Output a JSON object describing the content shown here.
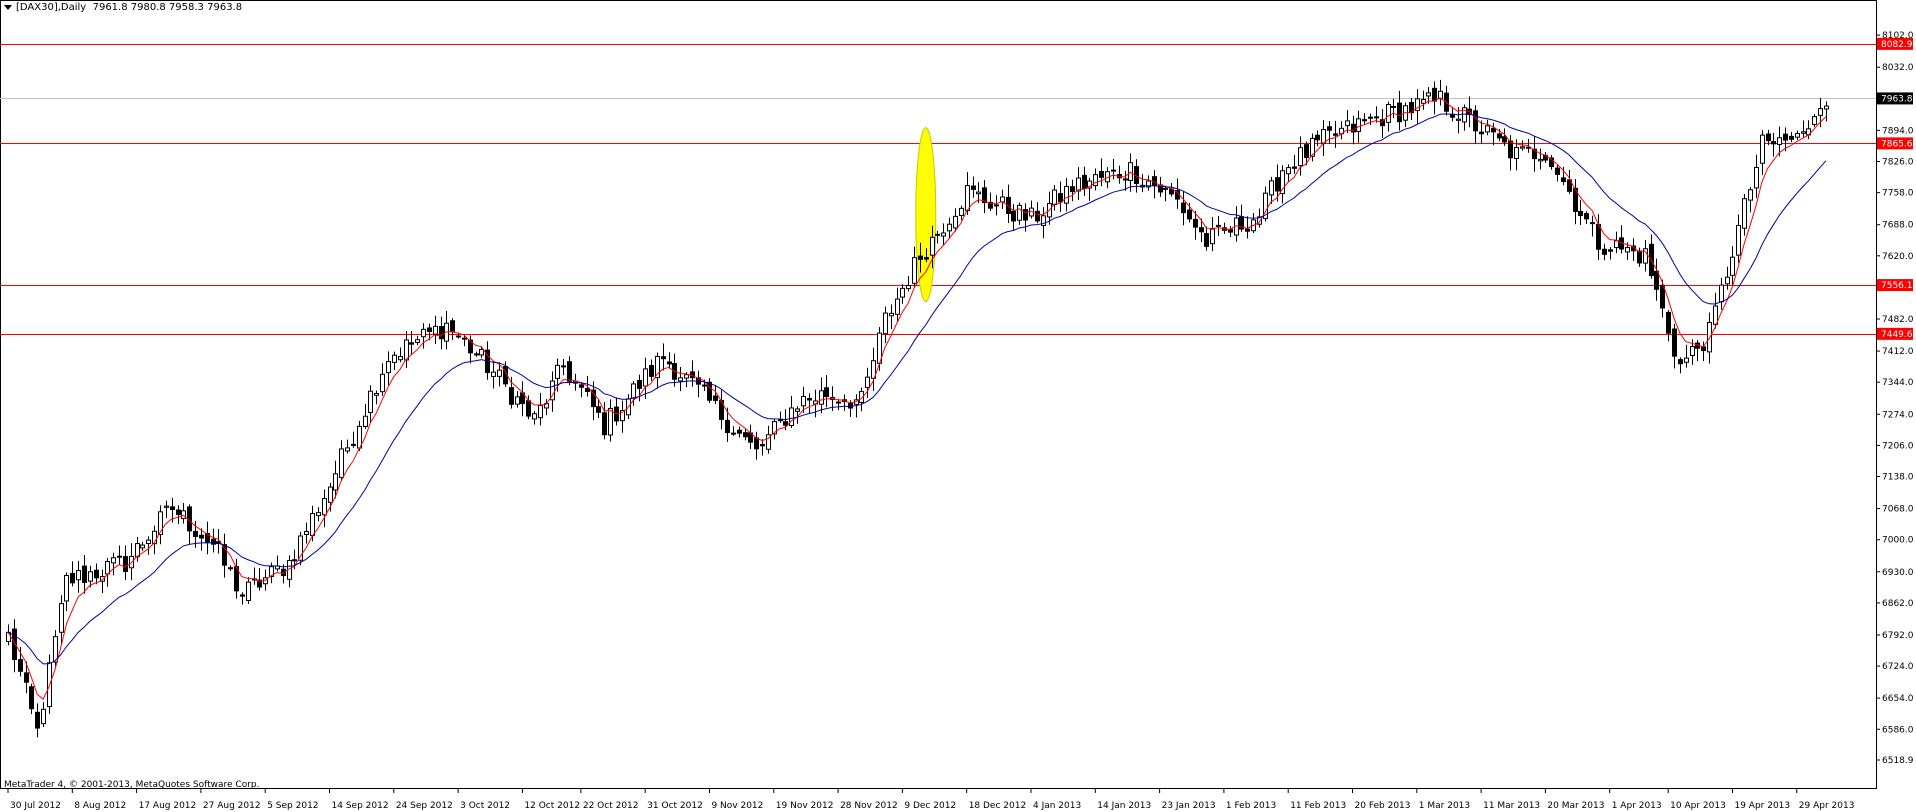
{
  "header": {
    "symbol": "[DAX30],Daily",
    "ohlc": "7961.8 7980.8 7958.3 7963.8"
  },
  "footer": {
    "copyright": "MetaTrader 4, © 2001-2013, MetaQuotes Software Corp."
  },
  "chart_data": {
    "type": "candlestick",
    "ylim": [
      6518.9,
      8170.0
    ],
    "y_ticks": [
      "8102.0",
      "8032.0",
      "7963.8",
      "7894.0",
      "7826.0",
      "7758.0",
      "7688.0",
      "7620.0",
      "7556.1",
      "7482.0",
      "7412.0",
      "7344.0",
      "7274.0",
      "7206.0",
      "7138.0",
      "7068.0",
      "7000.0",
      "6930.0",
      "6862.0",
      "6792.0",
      "6724.0",
      "6654.0",
      "6586.0",
      "6518.9"
    ],
    "x_ticks": [
      "30 Jul 2012",
      "8 Aug 2012",
      "17 Aug 2012",
      "27 Aug 2012",
      "5 Sep 2012",
      "14 Sep 2012",
      "24 Sep 2012",
      "3 Oct 2012",
      "12 Oct 2012",
      "22 Oct 2012",
      "31 Oct 2012",
      "9 Nov 2012",
      "19 Nov 2012",
      "28 Nov 2012",
      "9 Dec 2012",
      "18 Dec 2012",
      "4 Jan 2013",
      "14 Jan 2013",
      "23 Jan 2013",
      "1 Feb 2013",
      "11 Feb 2013",
      "20 Feb 2013",
      "1 Mar 2013",
      "11 Mar 2013",
      "20 Mar 2013",
      "1 Apr 2013",
      "10 Apr 2013",
      "19 Apr 2013",
      "29 Apr 2013"
    ],
    "hlines": [
      {
        "value": 8082.9,
        "label": "8082.9",
        "color": "#ff0000"
      },
      {
        "value": 7865.6,
        "label": "7865.6",
        "color": "#ff0000"
      },
      {
        "value": 7556.1,
        "label": "7556.1",
        "color": "#ff0000"
      },
      {
        "value": 7449.6,
        "label": "7449.6",
        "color": "#ff0000"
      }
    ],
    "current_price": {
      "value": 7963.8,
      "label": "7963.8",
      "color": "#c0c0c0"
    },
    "highlight": {
      "candle": 157,
      "y_from": 7900,
      "y_to": 7520,
      "color": "#ffff00"
    },
    "ma_fast_color": "#ff0000",
    "ma_slow_color": "#0000a0",
    "path": [
      [
        0,
        6790
      ],
      [
        5,
        6580
      ],
      [
        10,
        6910
      ],
      [
        20,
        6950
      ],
      [
        28,
        7070
      ],
      [
        35,
        6990
      ],
      [
        40,
        6880
      ],
      [
        48,
        6950
      ],
      [
        55,
        7120
      ],
      [
        65,
        7400
      ],
      [
        75,
        7470
      ],
      [
        82,
        7380
      ],
      [
        90,
        7260
      ],
      [
        95,
        7380
      ],
      [
        102,
        7250
      ],
      [
        112,
        7400
      ],
      [
        120,
        7300
      ],
      [
        128,
        7190
      ],
      [
        135,
        7300
      ],
      [
        140,
        7320
      ],
      [
        146,
        7300
      ],
      [
        150,
        7480
      ],
      [
        156,
        7620
      ],
      [
        164,
        7760
      ],
      [
        175,
        7700
      ],
      [
        182,
        7770
      ],
      [
        192,
        7810
      ],
      [
        200,
        7740
      ],
      [
        205,
        7650
      ],
      [
        214,
        7710
      ],
      [
        218,
        7810
      ],
      [
        226,
        7880
      ],
      [
        236,
        7930
      ],
      [
        245,
        7960
      ],
      [
        258,
        7840
      ],
      [
        263,
        7850
      ],
      [
        272,
        7650
      ],
      [
        280,
        7620
      ],
      [
        286,
        7380
      ],
      [
        291,
        7450
      ],
      [
        300,
        7860
      ],
      [
        307,
        7880
      ],
      [
        310,
        7964
      ]
    ],
    "colors": {
      "background": "#ffffff",
      "candle_up": "#ffffff",
      "candle_down": "#000000",
      "outline": "#000000"
    }
  }
}
